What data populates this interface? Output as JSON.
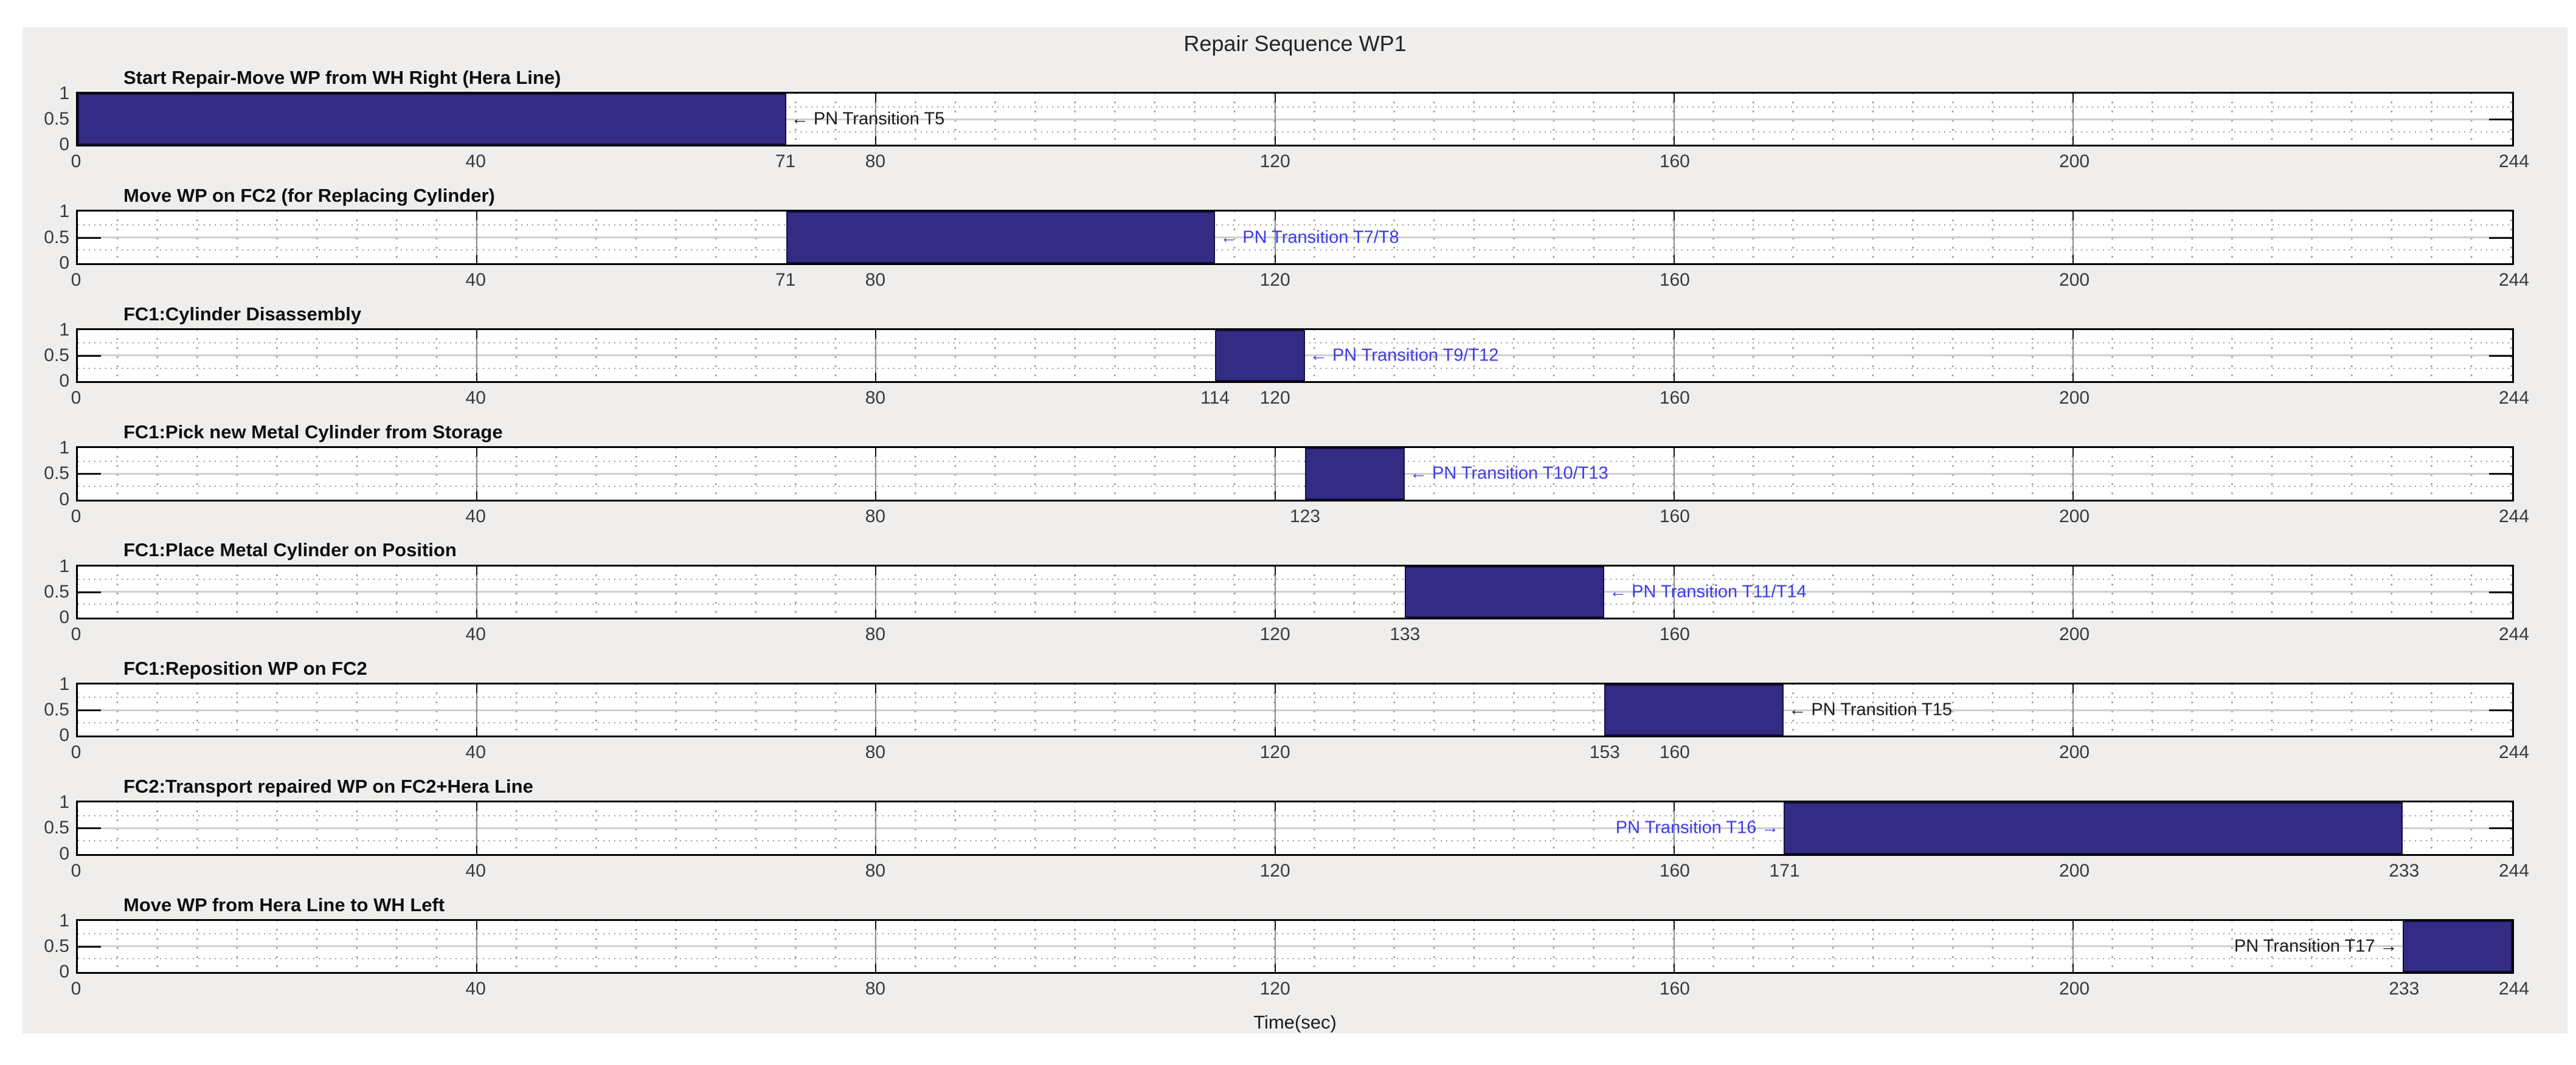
{
  "figure": {
    "title": "Repair Sequence WP1",
    "xlabel": "Time(sec)",
    "colors": {
      "figure_bg": "#efeeed",
      "plot_bg": "#ffffff",
      "bar_fill": "#342B85",
      "bar_edge": "#141042",
      "annotation_blue": "#3C3CEB",
      "annotation_black": "#1a1a1a",
      "major_grid": "#8b8b8b",
      "minor_grid_dots": "#9c9c9c"
    }
  },
  "chart_data": {
    "type": "bar",
    "title": "Repair Sequence WP1",
    "xlabel": "Time(sec)",
    "x_range": [
      0,
      244
    ],
    "y_range": [
      0,
      1
    ],
    "y_tick_labels": [
      "1",
      "0.5",
      "0"
    ],
    "major_gridlines": [
      40,
      80,
      120,
      160,
      200
    ],
    "grid": "on, minor dotted",
    "legend_position": "none",
    "rows": [
      {
        "title": "Start Repair-Move WP from WH Right (Hera Line)",
        "bar_start": 0,
        "bar_end": 71,
        "value": 1,
        "ticks": [
          0,
          40,
          71,
          80,
          120,
          160,
          200,
          244
        ],
        "annotation": {
          "text": "PN Transition T5",
          "color": "black",
          "dir": "left",
          "tip": 71
        }
      },
      {
        "title": "Move WP on FC2 (for Replacing Cylinder)",
        "bar_start": 71,
        "bar_end": 114,
        "value": 1,
        "ticks": [
          0,
          40,
          71,
          80,
          120,
          160,
          200,
          244
        ],
        "annotation": {
          "text": "PN Transition T7/T8",
          "color": "blue",
          "dir": "left",
          "tip": 114
        }
      },
      {
        "title": "FC1:Cylinder Disassembly",
        "bar_start": 114,
        "bar_end": 123,
        "value": 1,
        "ticks": [
          0,
          40,
          80,
          114,
          120,
          160,
          200,
          244
        ],
        "annotation": {
          "text": "PN Transition T9/T12",
          "color": "blue",
          "dir": "left",
          "tip": 123
        }
      },
      {
        "title": "FC1:Pick new Metal Cylinder from Storage",
        "bar_start": 123,
        "bar_end": 133,
        "value": 1,
        "ticks": [
          0,
          40,
          80,
          123,
          160,
          200,
          244
        ],
        "annotation": {
          "text": "PN Transition T10/T13",
          "color": "blue",
          "dir": "left",
          "tip": 133
        }
      },
      {
        "title": "FC1:Place Metal Cylinder on Position",
        "bar_start": 133,
        "bar_end": 153,
        "value": 1,
        "ticks": [
          0,
          40,
          80,
          120,
          133,
          160,
          200,
          244
        ],
        "annotation": {
          "text": "PN Transition T11/T14",
          "color": "blue",
          "dir": "left",
          "tip": 153
        }
      },
      {
        "title": "FC1:Reposition WP on FC2",
        "bar_start": 153,
        "bar_end": 171,
        "value": 1,
        "ticks": [
          0,
          40,
          80,
          120,
          153,
          160,
          200,
          244
        ],
        "annotation": {
          "text": "PN Transition T15",
          "color": "black",
          "dir": "left",
          "tip": 171
        }
      },
      {
        "title": "FC2:Transport repaired WP on FC2+Hera Line",
        "bar_start": 171,
        "bar_end": 233,
        "value": 1,
        "ticks": [
          0,
          40,
          80,
          120,
          160,
          171,
          200,
          233,
          244
        ],
        "annotation": {
          "text": "PN Transition T16",
          "color": "blue",
          "dir": "right",
          "tip": 171
        }
      },
      {
        "title": "Move WP from Hera Line to WH Left",
        "bar_start": 233,
        "bar_end": 244,
        "value": 1,
        "ticks": [
          0,
          40,
          80,
          120,
          160,
          200,
          233,
          244
        ],
        "annotation": {
          "text": "PN Transition T17",
          "color": "black",
          "dir": "right",
          "tip": 233
        }
      }
    ]
  }
}
